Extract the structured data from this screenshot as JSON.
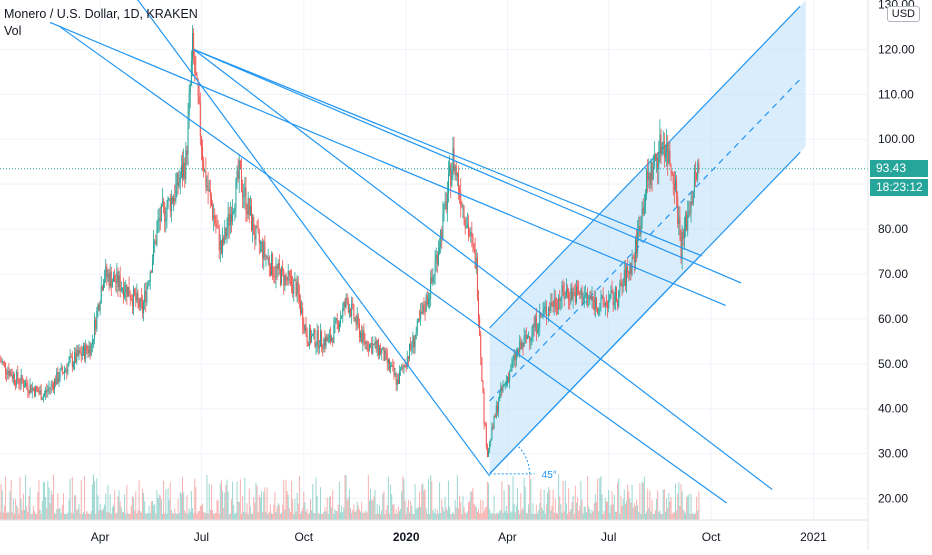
{
  "legend": {
    "title": "Monero / U.S. Dollar, 1D, KRAKEN",
    "volume_label": "Vol"
  },
  "currency_button": "USD",
  "last_price_tag": "93.43",
  "countdown_tag": "18:23:12",
  "angle_label": "45°",
  "colors": {
    "up": "#26a69a",
    "down": "#ef5350",
    "drawing": "#2196f3",
    "channel_fill": "#bbdefb",
    "last_price_line": "#26a69a"
  },
  "chart_data": {
    "type": "candlestick",
    "symbol": "XMR/USD",
    "interval": "1D",
    "exchange": "KRAKEN",
    "y_axis_ticks": [
      20,
      30,
      40,
      50,
      60,
      70,
      80,
      90,
      100,
      110,
      120
    ],
    "y_axis_tick_labels": [
      "20.00",
      "30.00",
      "40.00",
      "50.00",
      "60.00",
      "70.00",
      "80.00",
      "90.00",
      "100.00",
      "110.00",
      "120.00"
    ],
    "y_axis_top_partial_label": "130.00",
    "ylim": [
      17,
      131
    ],
    "x_axis_labels": [
      "Apr",
      "Jul",
      "Oct",
      "2020",
      "Apr",
      "Jul",
      "Oct",
      "2021"
    ],
    "x_axis_bold": [
      false,
      false,
      false,
      true,
      false,
      false,
      false,
      false
    ],
    "x_axis_dates": [
      "2019-04-01",
      "2019-07-01",
      "2019-10-01",
      "2020-01-01",
      "2020-04-01",
      "2020-07-01",
      "2020-10-01",
      "2021-01-01"
    ],
    "xlim": [
      "2019-01-01",
      "2021-02-19"
    ],
    "last_price": 93.43,
    "grid": true,
    "price_path_anchors": [
      [
        "2019-01-01",
        51
      ],
      [
        "2019-01-15",
        47
      ],
      [
        "2019-02-10",
        43
      ],
      [
        "2019-03-05",
        50
      ],
      [
        "2019-03-25",
        54
      ],
      [
        "2019-04-05",
        70
      ],
      [
        "2019-04-25",
        67
      ],
      [
        "2019-05-10",
        62
      ],
      [
        "2019-05-25",
        82
      ],
      [
        "2019-06-08",
        88
      ],
      [
        "2019-06-18",
        95
      ],
      [
        "2019-06-24",
        120
      ],
      [
        "2019-07-05",
        92
      ],
      [
        "2019-07-20",
        75
      ],
      [
        "2019-08-05",
        92
      ],
      [
        "2019-08-20",
        78
      ],
      [
        "2019-09-05",
        71
      ],
      [
        "2019-09-25",
        67
      ],
      [
        "2019-10-05",
        56
      ],
      [
        "2019-10-25",
        55
      ],
      [
        "2019-11-10",
        64
      ],
      [
        "2019-11-25",
        55
      ],
      [
        "2019-12-10",
        53
      ],
      [
        "2019-12-25",
        46
      ],
      [
        "2020-01-10",
        56
      ],
      [
        "2020-01-25",
        68
      ],
      [
        "2020-02-05",
        83
      ],
      [
        "2020-02-13",
        96
      ],
      [
        "2020-02-25",
        82
      ],
      [
        "2020-03-05",
        72
      ],
      [
        "2020-03-12",
        38
      ],
      [
        "2020-03-15",
        30
      ],
      [
        "2020-03-25",
        42
      ],
      [
        "2020-04-10",
        52
      ],
      [
        "2020-04-25",
        58
      ],
      [
        "2020-05-10",
        63
      ],
      [
        "2020-05-25",
        66
      ],
      [
        "2020-06-10",
        65
      ],
      [
        "2020-06-25",
        63
      ],
      [
        "2020-07-10",
        65
      ],
      [
        "2020-07-25",
        74
      ],
      [
        "2020-08-05",
        90
      ],
      [
        "2020-08-20",
        100
      ],
      [
        "2020-08-30",
        92
      ],
      [
        "2020-09-05",
        76
      ],
      [
        "2020-09-15",
        88
      ],
      [
        "2020-09-20",
        93.43
      ]
    ]
  },
  "drawings": {
    "trendlines": [
      {
        "from": [
          "2019-04-20",
          136
        ],
        "to": [
          "2020-03-16",
          25
        ]
      },
      {
        "from": [
          "2019-02-15",
          126
        ],
        "to": [
          "2020-10-14",
          63
        ]
      },
      {
        "from": [
          "2019-02-24",
          125
        ],
        "to": [
          "2020-10-15",
          19
        ]
      },
      {
        "from": [
          "2019-06-24",
          120
        ],
        "to": [
          "2020-11-25",
          22
        ]
      },
      {
        "from": [
          "2019-06-24",
          120
        ],
        "to": [
          "2020-10-28",
          68
        ]
      },
      {
        "from": [
          "2019-06-24",
          120
        ],
        "to": [
          "2020-09-23",
          74
        ]
      }
    ],
    "channel": {
      "lower": {
        "from": [
          "2020-03-16",
          25.5
        ],
        "to": [
          "2020-09-21",
          74
        ]
      },
      "upper_start": [
        "2020-03-16",
        58
      ],
      "end_date": "2020-12-25",
      "extend_to": "2020-12-20"
    },
    "angle_deg": 45
  }
}
